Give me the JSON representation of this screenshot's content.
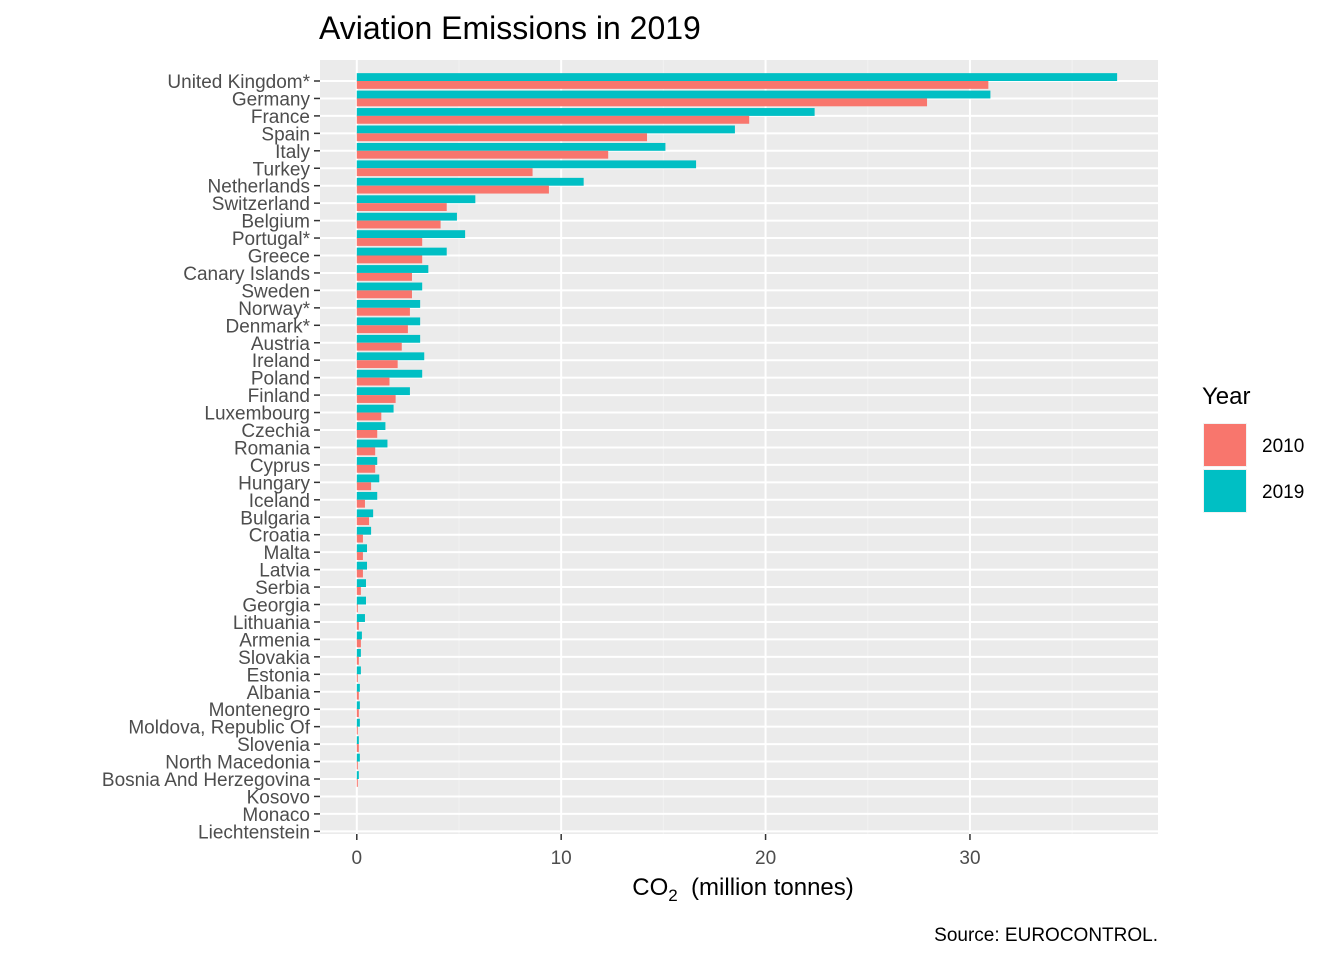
{
  "chart_data": {
    "type": "bar",
    "orientation": "horizontal",
    "title": "Aviation Emissions in 2019",
    "xlabel_main": "CO",
    "xlabel_sub": "2",
    "xlabel_rest": "  (million tonnes)",
    "ylabel": "",
    "caption": "Source: EUROCONTROL.",
    "xlim": [
      -1.8,
      39.2
    ],
    "xticks": [
      0,
      10,
      20,
      30
    ],
    "grid": true,
    "legend": {
      "title": "Year",
      "placement": "right"
    },
    "categories": [
      "United Kingdom*",
      "Germany",
      "France",
      "Spain",
      "Italy",
      "Turkey",
      "Netherlands",
      "Switzerland",
      "Belgium",
      "Portugal*",
      "Greece",
      "Canary Islands",
      "Sweden",
      "Norway*",
      "Denmark*",
      "Austria",
      "Ireland",
      "Poland",
      "Finland",
      "Luxembourg",
      "Czechia",
      "Romania",
      "Cyprus",
      "Hungary",
      "Iceland",
      "Bulgaria",
      "Croatia",
      "Malta",
      "Latvia",
      "Serbia",
      "Georgia",
      "Lithuania",
      "Armenia",
      "Slovakia",
      "Estonia",
      "Albania",
      "Montenegro",
      "Moldova, Republic Of",
      "Slovenia",
      "North Macedonia",
      "Bosnia And Herzegovina",
      "Kosovo",
      "Monaco",
      "Liechtenstein"
    ],
    "series": [
      {
        "name": "2010",
        "color": "#F8766D",
        "values": [
          30.9,
          27.9,
          19.2,
          14.2,
          12.3,
          8.6,
          9.4,
          4.4,
          4.1,
          3.2,
          3.2,
          2.7,
          2.7,
          2.6,
          2.5,
          2.2,
          2.0,
          1.6,
          1.9,
          1.2,
          1.0,
          0.9,
          0.9,
          0.7,
          0.4,
          0.6,
          0.3,
          0.3,
          0.3,
          0.2,
          0.05,
          0.1,
          0.2,
          0.1,
          0.05,
          0.1,
          0.1,
          0.05,
          0.1,
          0.05,
          0.05,
          0.0,
          0.0,
          0.0
        ]
      },
      {
        "name": "2019",
        "color": "#00BFC4",
        "values": [
          37.2,
          31.0,
          22.4,
          18.5,
          15.1,
          16.6,
          11.1,
          5.8,
          4.9,
          5.3,
          4.4,
          3.5,
          3.2,
          3.1,
          3.1,
          3.1,
          3.3,
          3.2,
          2.6,
          1.8,
          1.4,
          1.5,
          1.0,
          1.1,
          1.0,
          0.8,
          0.7,
          0.5,
          0.5,
          0.45,
          0.45,
          0.4,
          0.25,
          0.2,
          0.2,
          0.15,
          0.15,
          0.15,
          0.1,
          0.15,
          0.1,
          0.0,
          0.0,
          0.0
        ]
      }
    ]
  }
}
